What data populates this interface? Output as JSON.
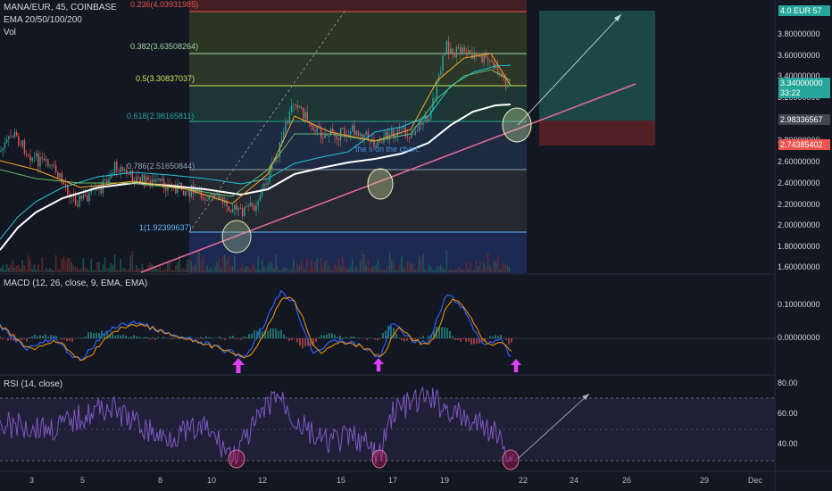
{
  "header": {
    "symbol_line": "MANA/EUR, 45, COINBASE",
    "ema_line": "EMA 20/50/100/200",
    "vol_line": "Vol"
  },
  "fib_levels": [
    {
      "label": "0.236(4.03931985)",
      "value": 4.0393,
      "color": "#ef5350"
    },
    {
      "label": "0.382(3.63508264)",
      "value": 3.6351,
      "color": "#a5d6a7"
    },
    {
      "label": "0.5(3.30837037)",
      "value": 3.3084,
      "color": "#d4e157"
    },
    {
      "label": "0.618(2.98165811)",
      "value": 2.9817,
      "color": "#26a69a"
    },
    {
      "label": "0.786(2.51650844)",
      "value": 2.5165,
      "color": "#90a4ae"
    },
    {
      "label": "1(1.92399637)",
      "value": 1.924,
      "color": "#64b5f6"
    }
  ],
  "price_axis": [
    "3.80000000",
    "3.60000000",
    "3.40000000",
    "3.20000000",
    "2.80000000",
    "2.60000000",
    "2.40000000",
    "2.20000000",
    "2.00000000",
    "1.80000000",
    "1.60000000"
  ],
  "price_tags": {
    "top": "4.0  EUR 57",
    "current": "3.34000000",
    "countdown": "33:22",
    "mid": "2.98336567",
    "low": "2.74385402"
  },
  "macd": {
    "title": "MACD (12, 26, close, 9, EMA, EMA)",
    "ticks": [
      "0.10000000",
      "0.00000000"
    ]
  },
  "rsi": {
    "title": "RSI (14, close)",
    "ticks": [
      "80.00",
      "60.00",
      "40.00"
    ]
  },
  "x_axis": [
    "3",
    "5",
    "8",
    "10",
    "12",
    "15",
    "17",
    "19",
    "22",
    "24",
    "26",
    "29",
    "Dec"
  ],
  "annotation_text": "the s on the chart.",
  "colors": {
    "background": "#131722",
    "trendline": "#e86a9a",
    "ema_white": "#ffffff",
    "macd_arrow": "#e040fb",
    "rsi_line": "#7e57c2",
    "tag_green": "#26a69a",
    "tag_red": "#ef5350"
  }
}
